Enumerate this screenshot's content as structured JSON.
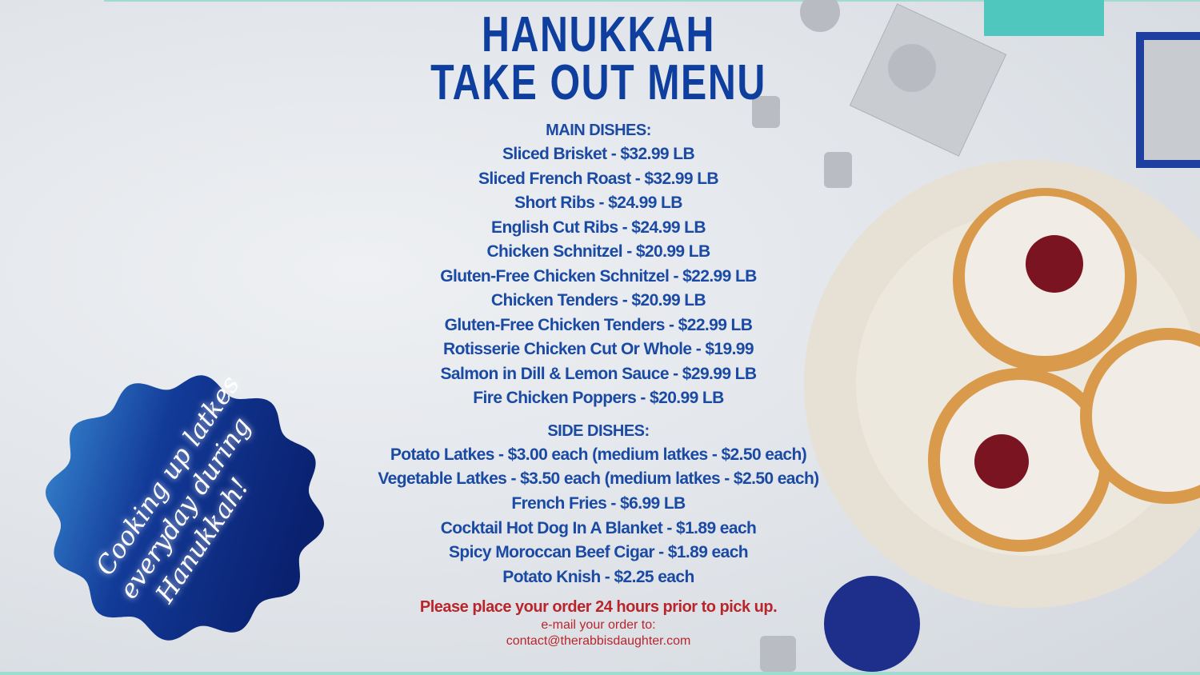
{
  "title": [
    "HANUKKAH",
    "TAKE OUT MENU"
  ],
  "main_dishes": {
    "heading": "MAIN DISHES:",
    "items": [
      "Sliced Brisket - $32.99 LB",
      "Sliced French Roast - $32.99 LB",
      "Short Ribs - $24.99 LB",
      "English Cut Ribs - $24.99 LB",
      "Chicken Schnitzel - $20.99 LB",
      "Gluten-Free Chicken Schnitzel - $22.99 LB",
      "Chicken Tenders - $20.99 LB",
      "Gluten-Free Chicken Tenders - $22.99 LB",
      "Rotisserie Chicken Cut Or Whole - $19.99",
      "Salmon in Dill & Lemon Sauce - $29.99 LB",
      "Fire Chicken Poppers - $20.99 LB"
    ]
  },
  "side_dishes": {
    "heading": "SIDE DISHES:",
    "items": [
      "Potato Latkes - $3.00 each (medium latkes - $2.50 each)",
      "Vegetable Latkes - $3.50 each (medium latkes - $2.50 each)",
      "French Fries - $6.99 LB",
      "Cocktail Hot Dog In A Blanket - $1.89 each",
      "Spicy Moroccan Beef Cigar - $1.89 each",
      "Potato Knish - $2.25 each"
    ]
  },
  "footer": {
    "notice": "Please place your order 24 hours prior to pick up.",
    "email_label": "e-mail your order to:",
    "email": "contact@therabbisdaughter.com"
  },
  "badge": {
    "lines": [
      "Cooking up latkes",
      "everyday during",
      "Hanukkah!"
    ]
  },
  "colors": {
    "title": "#0f3f9e",
    "text": "#1a4aa3",
    "notice": "#b8262c",
    "badge_dark": "#0a2170",
    "badge_light": "#3b8fd6"
  }
}
